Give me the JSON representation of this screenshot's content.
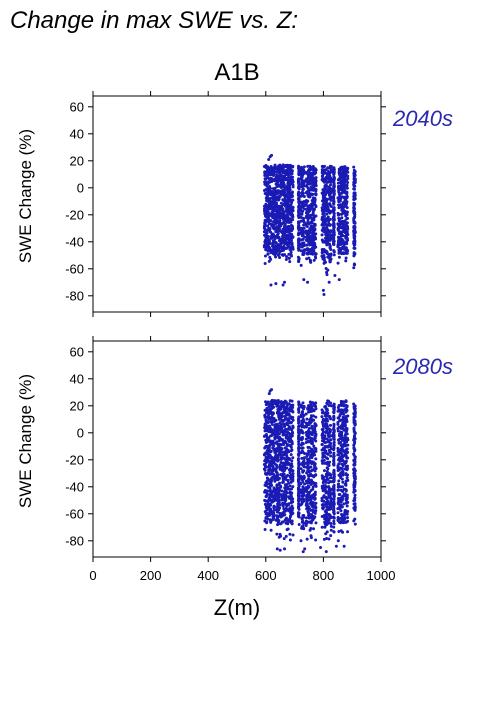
{
  "header": {
    "title": "Change in max SWE vs. Z:",
    "scenario": "A1B"
  },
  "colors": {
    "points": "#1a1ab4",
    "period_text": "#2a2ab0"
  },
  "chart_data": [
    {
      "type": "scatter",
      "period": "2040s",
      "xlabel": "Z(m)",
      "ylabel": "SWE Change (%)",
      "xlim": [
        0,
        1000
      ],
      "ylim": [
        -92,
        68
      ],
      "x_ticks": [
        0,
        200,
        400,
        600,
        800,
        1000
      ],
      "y_ticks": [
        -80,
        -60,
        -40,
        -20,
        0,
        20,
        40,
        60
      ],
      "grid": false,
      "x_tick_labels_shown": false,
      "point_columns": [
        {
          "x_range": [
            595,
            640
          ],
          "y_range": [
            -57,
            17
          ]
        },
        {
          "x_range": [
            640,
            695
          ],
          "y_range": [
            -55,
            17
          ]
        },
        {
          "x_range": [
            713,
            716
          ],
          "y_range": [
            -55,
            16
          ]
        },
        {
          "x_range": [
            722,
            735
          ],
          "y_range": [
            -62,
            16
          ]
        },
        {
          "x_range": [
            740,
            775
          ],
          "y_range": [
            -58,
            16
          ]
        },
        {
          "x_range": [
            795,
            828
          ],
          "y_range": [
            -65,
            16
          ]
        },
        {
          "x_range": [
            835,
            838
          ],
          "y_range": [
            -50,
            15
          ]
        },
        {
          "x_range": [
            850,
            885
          ],
          "y_range": [
            -58,
            16
          ]
        },
        {
          "x_range": [
            905,
            911
          ],
          "y_range": [
            -60,
            16
          ]
        }
      ],
      "outliers": [
        {
          "x": 615,
          "y": 23
        },
        {
          "x": 620,
          "y": 24
        },
        {
          "x": 610,
          "y": 21
        },
        {
          "x": 618,
          "y": -72
        },
        {
          "x": 635,
          "y": -71
        },
        {
          "x": 660,
          "y": -72
        },
        {
          "x": 665,
          "y": -70
        },
        {
          "x": 732,
          "y": -68
        },
        {
          "x": 745,
          "y": -70
        },
        {
          "x": 800,
          "y": -76
        },
        {
          "x": 802,
          "y": -79
        },
        {
          "x": 820,
          "y": -70
        },
        {
          "x": 840,
          "y": -65
        },
        {
          "x": 855,
          "y": -68
        }
      ]
    },
    {
      "type": "scatter",
      "period": "2080s",
      "xlabel": "Z(m)",
      "ylabel": "SWE Change (%)",
      "xlim": [
        0,
        1000
      ],
      "ylim": [
        -92,
        68
      ],
      "x_ticks": [
        0,
        200,
        400,
        600,
        800,
        1000
      ],
      "y_ticks": [
        -80,
        -60,
        -40,
        -20,
        0,
        20,
        40,
        60
      ],
      "grid": false,
      "x_tick_labels_shown": true,
      "point_columns": [
        {
          "x_range": [
            595,
            640
          ],
          "y_range": [
            -78,
            24
          ]
        },
        {
          "x_range": [
            640,
            695
          ],
          "y_range": [
            -80,
            24
          ]
        },
        {
          "x_range": [
            713,
            716
          ],
          "y_range": [
            -75,
            23
          ]
        },
        {
          "x_range": [
            722,
            735
          ],
          "y_range": [
            -84,
            23
          ]
        },
        {
          "x_range": [
            740,
            775
          ],
          "y_range": [
            -80,
            23
          ]
        },
        {
          "x_range": [
            795,
            828
          ],
          "y_range": [
            -82,
            24
          ]
        },
        {
          "x_range": [
            835,
            838
          ],
          "y_range": [
            -75,
            22
          ]
        },
        {
          "x_range": [
            850,
            885
          ],
          "y_range": [
            -80,
            24
          ]
        },
        {
          "x_range": [
            905,
            911
          ],
          "y_range": [
            -70,
            22
          ]
        }
      ],
      "outliers": [
        {
          "x": 615,
          "y": 31
        },
        {
          "x": 620,
          "y": 32
        },
        {
          "x": 612,
          "y": 29
        },
        {
          "x": 640,
          "y": -86
        },
        {
          "x": 650,
          "y": -87
        },
        {
          "x": 665,
          "y": -86
        },
        {
          "x": 730,
          "y": -88
        },
        {
          "x": 735,
          "y": -86
        },
        {
          "x": 790,
          "y": -85
        },
        {
          "x": 810,
          "y": -88
        },
        {
          "x": 845,
          "y": -84
        },
        {
          "x": 872,
          "y": -84
        }
      ]
    }
  ]
}
